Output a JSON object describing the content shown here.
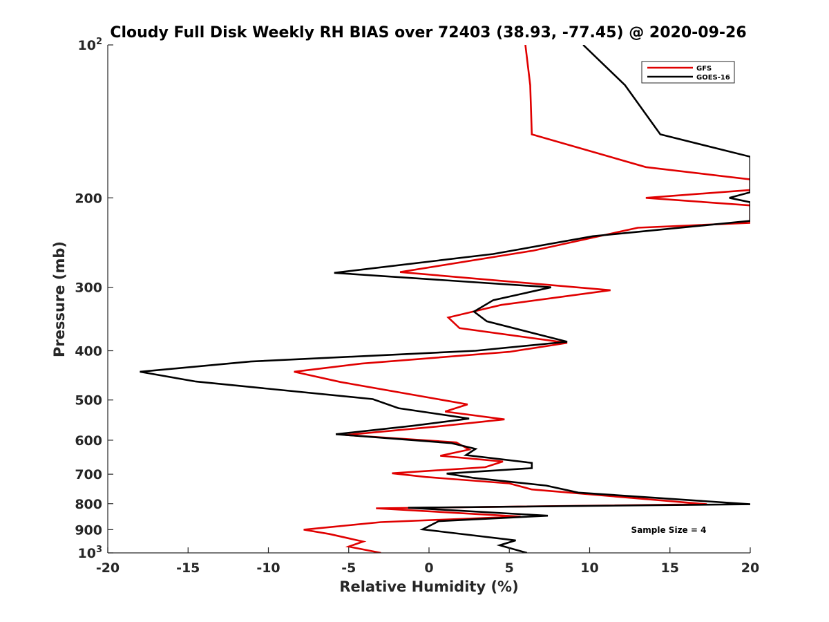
{
  "chart_data": {
    "type": "line",
    "title": "Cloudy Full Disk Weekly RH BIAS over 72403 (38.93, -77.45) @ 2020-09-26",
    "xlabel": "Relative Humidity (%)",
    "ylabel": "Pressure (mb)",
    "xlim": [
      -20,
      20
    ],
    "ylim": [
      100,
      1000
    ],
    "y_scale": "log",
    "y_reversed": true,
    "grid": false,
    "legend_position": "top-right",
    "x_ticks": [
      {
        "value": -20,
        "label": "-20"
      },
      {
        "value": -15,
        "label": "-15"
      },
      {
        "value": -10,
        "label": "-10"
      },
      {
        "value": -5,
        "label": "-5"
      },
      {
        "value": 0,
        "label": "0"
      },
      {
        "value": 5,
        "label": "5"
      },
      {
        "value": 10,
        "label": "10"
      },
      {
        "value": 15,
        "label": "15"
      },
      {
        "value": 20,
        "label": "20"
      }
    ],
    "y_ticks": [
      {
        "value": 100,
        "label": "10",
        "sup": "2"
      },
      {
        "value": 200,
        "label": "200",
        "sup": ""
      },
      {
        "value": 300,
        "label": "300",
        "sup": ""
      },
      {
        "value": 400,
        "label": "400",
        "sup": ""
      },
      {
        "value": 500,
        "label": "500",
        "sup": ""
      },
      {
        "value": 600,
        "label": "600",
        "sup": ""
      },
      {
        "value": 700,
        "label": "700",
        "sup": ""
      },
      {
        "value": 800,
        "label": "800",
        "sup": ""
      },
      {
        "value": 900,
        "label": "900",
        "sup": ""
      },
      {
        "value": 1000,
        "label": "10",
        "sup": "3"
      }
    ],
    "series": [
      {
        "name": "GFS",
        "color": "#e00000",
        "points": [
          [
            6.0,
            100
          ],
          [
            6.3,
            120
          ],
          [
            6.4,
            150
          ],
          [
            13.5,
            174
          ],
          [
            20.0,
            184
          ],
          [
            20.0,
            193
          ],
          [
            13.5,
            200
          ],
          [
            20.0,
            207
          ],
          [
            20.0,
            224
          ],
          [
            13.0,
            229
          ],
          [
            6.5,
            254
          ],
          [
            -1.8,
            280
          ],
          [
            11.3,
            304
          ],
          [
            4.5,
            325
          ],
          [
            1.2,
            344
          ],
          [
            1.9,
            361
          ],
          [
            8.6,
            386
          ],
          [
            5.0,
            402
          ],
          [
            -4.2,
            424
          ],
          [
            -8.4,
            440
          ],
          [
            -5.5,
            461
          ],
          [
            2.4,
            510
          ],
          [
            1.0,
            527
          ],
          [
            4.7,
            546
          ],
          [
            0.5,
            564
          ],
          [
            -5.2,
            586
          ],
          [
            1.7,
            606
          ],
          [
            2.5,
            626
          ],
          [
            0.7,
            644
          ],
          [
            4.6,
            661
          ],
          [
            3.5,
            678
          ],
          [
            -2.3,
            697
          ],
          [
            -0.2,
            709
          ],
          [
            5.0,
            730
          ],
          [
            6.4,
            750
          ],
          [
            17.3,
            802
          ],
          [
            -3.3,
            817
          ],
          [
            5.7,
            848
          ],
          [
            -3.0,
            870
          ],
          [
            -7.8,
            900
          ],
          [
            -6.2,
            918
          ],
          [
            -4.1,
            950
          ],
          [
            -5.0,
            972
          ],
          [
            -3.0,
            1000
          ]
        ]
      },
      {
        "name": "GOES-16",
        "color": "#000000",
        "points": [
          [
            9.6,
            100
          ],
          [
            12.2,
            120
          ],
          [
            14.4,
            150
          ],
          [
            20.0,
            166
          ],
          [
            20.0,
            195
          ],
          [
            18.7,
            200
          ],
          [
            20.0,
            204
          ],
          [
            20.0,
            222
          ],
          [
            10.2,
            238
          ],
          [
            4.0,
            258
          ],
          [
            -5.9,
            281
          ],
          [
            7.6,
            300
          ],
          [
            4.0,
            318
          ],
          [
            2.8,
            335
          ],
          [
            3.6,
            350
          ],
          [
            8.6,
            384
          ],
          [
            2.9,
            400
          ],
          [
            -11.1,
            420
          ],
          [
            -18.0,
            440
          ],
          [
            -14.5,
            460
          ],
          [
            -3.5,
            498
          ],
          [
            -1.9,
            519
          ],
          [
            2.5,
            544
          ],
          [
            -1.0,
            562
          ],
          [
            -5.8,
            584
          ],
          [
            1.4,
            608
          ],
          [
            2.9,
            624
          ],
          [
            2.3,
            642
          ],
          [
            6.4,
            665
          ],
          [
            6.4,
            681
          ],
          [
            1.1,
            698
          ],
          [
            2.8,
            712
          ],
          [
            7.3,
            737
          ],
          [
            9.3,
            761
          ],
          [
            20.0,
            802
          ],
          [
            -1.3,
            815
          ],
          [
            7.4,
            845
          ],
          [
            0.6,
            866
          ],
          [
            -0.4,
            899
          ],
          [
            5.4,
            945
          ],
          [
            4.4,
            966
          ],
          [
            6.1,
            1000
          ]
        ]
      }
    ],
    "annotation": "Sample Size = 4"
  }
}
